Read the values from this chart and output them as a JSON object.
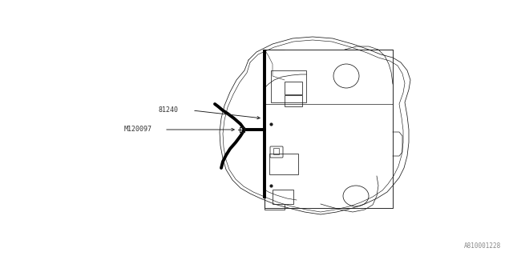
{
  "bg_color": "#ffffff",
  "line_color": "#1a1a1a",
  "thin_color": "#444444",
  "label_color": "#333333",
  "part_label_81240": "81240",
  "part_label_M120097": "M120097",
  "watermark": "A810001228",
  "fig_width": 6.4,
  "fig_height": 3.2,
  "dpi": 100,
  "lw_outer": 0.55,
  "lw_inner": 0.6,
  "lw_thick": 2.8,
  "lw_wire": 0.6,
  "label_fontsize": 6.0,
  "watermark_fontsize": 5.5
}
